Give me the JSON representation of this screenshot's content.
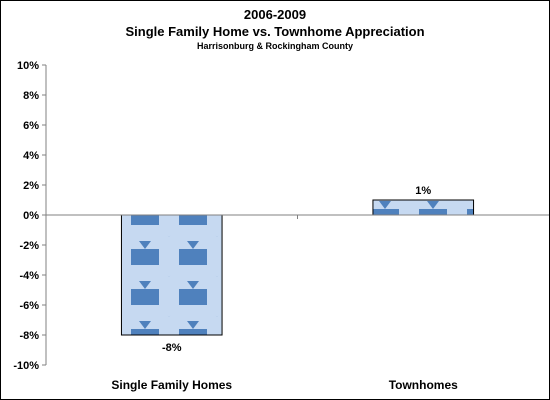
{
  "chart_data": {
    "type": "bar",
    "title": "2006-2009",
    "subtitle": "Single Family Home vs. Townhome Appreciation",
    "subtitle2": "Harrisonburg & Rockingham County",
    "categories": [
      "Single Family Homes",
      "Townhomes"
    ],
    "values": [
      -8,
      1
    ],
    "data_labels": [
      "-8%",
      "1%"
    ],
    "ylim": [
      -10,
      10
    ],
    "yticks": [
      10,
      8,
      6,
      4,
      2,
      0,
      -2,
      -4,
      -6,
      -8,
      -10
    ],
    "ytick_labels": [
      "10%",
      "8%",
      "6%",
      "4%",
      "2%",
      "0%",
      "-2%",
      "-4%",
      "-6%",
      "-8%",
      "-10%"
    ],
    "xlabel": "",
    "ylabel": "",
    "grid": false,
    "legend": "none",
    "colors": {
      "bar_fill": "#c6d9f1",
      "arrow_pattern": "#4f81bd",
      "bar_border": "#000000",
      "axis": "#808080"
    }
  }
}
